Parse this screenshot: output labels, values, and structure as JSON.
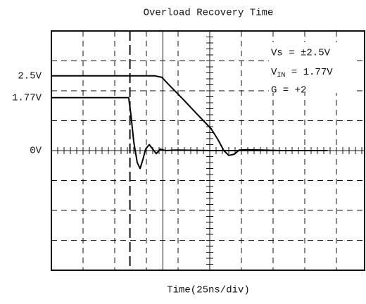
{
  "chart_data": {
    "type": "line",
    "title": "Overload Recovery Time",
    "xlabel": "Time(25ns/div)",
    "xlim": [
      0,
      250
    ],
    "ylim": [
      -4,
      4
    ],
    "xgrid": [
      25,
      50,
      75,
      100,
      125,
      150,
      175,
      200,
      225
    ],
    "ygrid": [
      -3,
      -2,
      -1,
      0,
      1,
      2,
      3
    ],
    "yticks": [
      {
        "value": 2.5,
        "label": "2.5V"
      },
      {
        "value": 1.77,
        "label": "1.77V"
      },
      {
        "value": 0,
        "label": "0V"
      }
    ],
    "cursors": [
      62,
      88
    ],
    "annotations": {
      "vs": "Vs = ±2.5V",
      "vin_main": "V",
      "vin_sub": "IN",
      "vin_rest": " = 1.77V",
      "gain": "G = +2"
    },
    "series": [
      {
        "color": "#000000",
        "x": [
          0,
          61,
          62.8,
          65,
          67.8,
          70,
          72.2,
          74.4,
          77.2,
          80,
          82.8,
          86,
          90,
          98,
          126,
          182,
          218
        ],
        "values": [
          1.77,
          1.77,
          1.2,
          0.3,
          -0.4,
          -0.6,
          -0.3,
          0.05,
          0.2,
          0.05,
          -0.1,
          0.05,
          0,
          0.02,
          0,
          0,
          0
        ]
      },
      {
        "color": "#000000",
        "x": [
          0,
          81.7,
          87.2,
          92.8,
          103.9,
          115,
          126.1,
          131.7,
          136.1,
          140,
          144.4,
          148.3,
          153.9,
          181.7,
          217.8
        ],
        "values": [
          2.5,
          2.5,
          2.45,
          2.2,
          1.72,
          1.22,
          0.73,
          0.35,
          0,
          -0.16,
          -0.12,
          0.02,
          0.03,
          0,
          0
        ]
      }
    ]
  }
}
